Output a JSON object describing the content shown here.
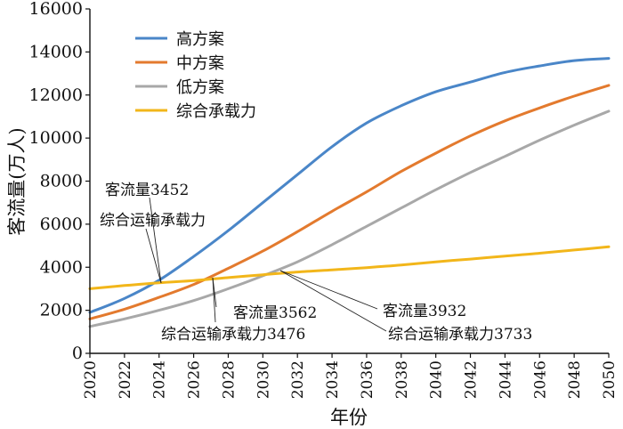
{
  "chart_data": {
    "type": "line",
    "xlabel": "年份",
    "ylabel": "客流量(万人)",
    "xlim": [
      2020,
      2050
    ],
    "ylim": [
      0,
      16000
    ],
    "x_ticks": [
      "2020",
      "2022",
      "2024",
      "2026",
      "2028",
      "2030",
      "2032",
      "2034",
      "2036",
      "2038",
      "2040",
      "2042",
      "2044",
      "2046",
      "2048",
      "2050"
    ],
    "y_ticks": [
      "0",
      "2000",
      "4000",
      "6000",
      "8000",
      "10000",
      "12000",
      "14000",
      "16000"
    ],
    "grid": false,
    "legend_position": "top-left",
    "x": [
      2020,
      2022,
      2024,
      2026,
      2028,
      2030,
      2032,
      2034,
      2036,
      2038,
      2040,
      2042,
      2044,
      2046,
      2048,
      2050
    ],
    "series": [
      {
        "name": "高方案",
        "color": "#4a86c8",
        "values": [
          1900,
          2550,
          3400,
          4500,
          5700,
          7000,
          8300,
          9600,
          10700,
          11500,
          12150,
          12600,
          13050,
          13350,
          13600,
          13700
        ]
      },
      {
        "name": "中方案",
        "color": "#e37a2e",
        "values": [
          1600,
          2050,
          2600,
          3200,
          3950,
          4750,
          5650,
          6600,
          7500,
          8450,
          9300,
          10100,
          10800,
          11400,
          11950,
          12450
        ]
      },
      {
        "name": "低方案",
        "color": "#a8a8a8",
        "values": [
          1250,
          1600,
          2000,
          2450,
          3000,
          3600,
          4250,
          5050,
          5900,
          6750,
          7600,
          8400,
          9150,
          9900,
          10600,
          11250
        ]
      },
      {
        "name": "综合承载力",
        "color": "#f2b61a",
        "values": [
          3000,
          3150,
          3280,
          3380,
          3520,
          3650,
          3780,
          3880,
          3980,
          4100,
          4250,
          4380,
          4520,
          4650,
          4800,
          4950
        ]
      }
    ],
    "annotations": [
      {
        "id": "a1",
        "line1": "客流量3452",
        "line2": "综合运输承载力",
        "x": 2024.0,
        "y": 3400
      },
      {
        "id": "a2",
        "line1": "客流量3562",
        "line2": "综合运输承载力3476",
        "x": 2027.0,
        "y": 3560
      },
      {
        "id": "a3",
        "line1": "客流量3932",
        "line2": "综合运输承载力3733",
        "x": 2031.0,
        "y": 3800
      }
    ]
  }
}
